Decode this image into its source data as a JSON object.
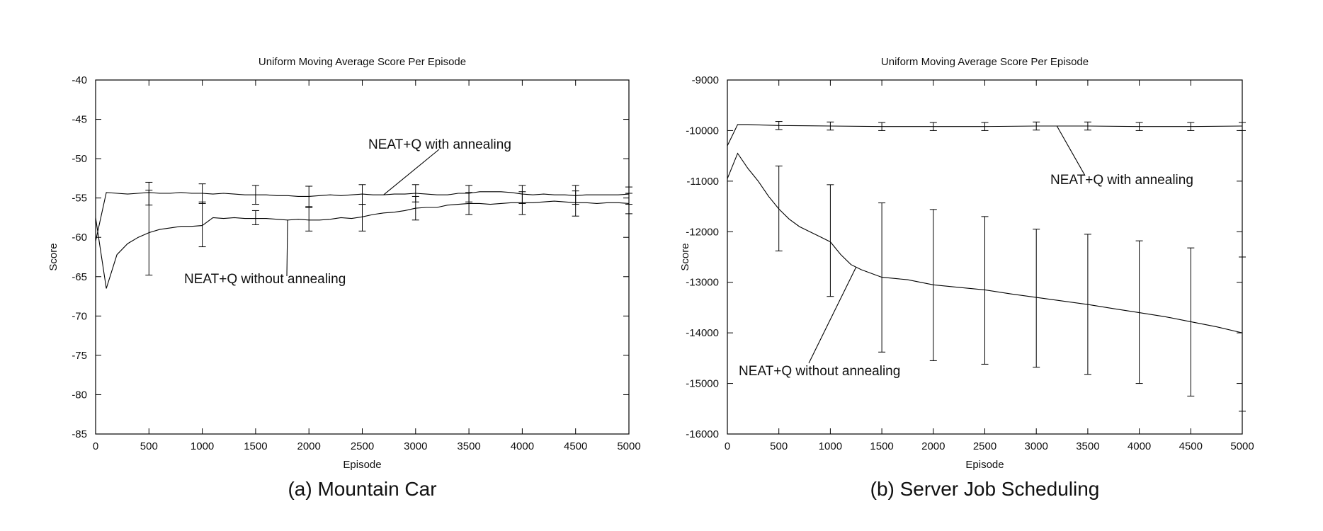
{
  "figure": {
    "captions": [
      "(a) Mountain Car",
      "(b) Server Job Scheduling"
    ]
  },
  "chart_data": [
    {
      "type": "line",
      "title": "Uniform Moving Average Score Per Episode",
      "caption": "(a) Mountain Car",
      "xlabel": "Episode",
      "ylabel": "Score",
      "xlim": [
        0,
        5000
      ],
      "ylim": [
        -85,
        -40
      ],
      "xticks": [
        0,
        500,
        1000,
        1500,
        2000,
        2500,
        3000,
        3500,
        4000,
        4500,
        5000
      ],
      "yticks": [
        -40,
        -45,
        -50,
        -55,
        -60,
        -65,
        -70,
        -75,
        -80,
        -85
      ],
      "grid": false,
      "annotations": [
        {
          "text": "NEAT+Q with annealing",
          "series": 0,
          "point_x": 2700
        },
        {
          "text": "NEAT+Q without annealing",
          "series": 1,
          "point_x": 1800
        }
      ],
      "series": [
        {
          "name": "NEAT+Q with annealing",
          "x": [
            0,
            100,
            200,
            300,
            400,
            500,
            600,
            700,
            800,
            900,
            1000,
            1100,
            1200,
            1300,
            1400,
            1500,
            1600,
            1700,
            1800,
            1900,
            2000,
            2100,
            2200,
            2300,
            2400,
            2500,
            2600,
            2700,
            2800,
            2900,
            3000,
            3100,
            3200,
            3300,
            3400,
            3500,
            3600,
            3700,
            3800,
            3900,
            4000,
            4100,
            4200,
            4300,
            4400,
            4500,
            4600,
            4700,
            4800,
            4900,
            5000
          ],
          "y": [
            -60.5,
            -54.3,
            -54.4,
            -54.5,
            -54.4,
            -54.3,
            -54.4,
            -54.4,
            -54.3,
            -54.4,
            -54.4,
            -54.5,
            -54.4,
            -54.5,
            -54.6,
            -54.6,
            -54.6,
            -54.7,
            -54.7,
            -54.8,
            -54.8,
            -54.7,
            -54.6,
            -54.7,
            -54.6,
            -54.5,
            -54.6,
            -54.6,
            -54.5,
            -54.5,
            -54.4,
            -54.5,
            -54.6,
            -54.6,
            -54.4,
            -54.4,
            -54.2,
            -54.2,
            -54.2,
            -54.3,
            -54.5,
            -54.6,
            -54.5,
            -54.6,
            -54.6,
            -54.7,
            -54.6,
            -54.6,
            -54.6,
            -54.6,
            -54.5
          ],
          "errorbars": [
            {
              "x": 500,
              "low": -55.9,
              "high": -53.0
            },
            {
              "x": 1000,
              "low": -55.7,
              "high": -53.2
            },
            {
              "x": 1500,
              "low": -55.8,
              "high": -53.4
            },
            {
              "x": 2000,
              "low": -56.1,
              "high": -53.5
            },
            {
              "x": 2500,
              "low": -55.8,
              "high": -53.3
            },
            {
              "x": 3000,
              "low": -55.5,
              "high": -53.3
            },
            {
              "x": 3500,
              "low": -55.5,
              "high": -53.4
            },
            {
              "x": 4000,
              "low": -55.7,
              "high": -53.4
            },
            {
              "x": 4500,
              "low": -55.8,
              "high": -53.4
            },
            {
              "x": 5000,
              "low": -55.8,
              "high": -53.6
            }
          ]
        },
        {
          "name": "NEAT+Q without annealing",
          "x": [
            0,
            100,
            200,
            300,
            400,
            500,
            600,
            700,
            800,
            900,
            1000,
            1100,
            1200,
            1300,
            1400,
            1500,
            1600,
            1700,
            1800,
            1900,
            2000,
            2100,
            2200,
            2300,
            2400,
            2500,
            2600,
            2700,
            2800,
            2900,
            3000,
            3100,
            3200,
            3300,
            3400,
            3500,
            3600,
            3700,
            3800,
            3900,
            4000,
            4100,
            4200,
            4300,
            4400,
            4500,
            4600,
            4700,
            4800,
            4900,
            5000
          ],
          "y": [
            -57.5,
            -66.5,
            -62.2,
            -60.8,
            -60.0,
            -59.4,
            -59.0,
            -58.8,
            -58.6,
            -58.6,
            -58.5,
            -57.5,
            -57.6,
            -57.5,
            -57.6,
            -57.6,
            -57.6,
            -57.7,
            -57.8,
            -57.7,
            -57.8,
            -57.8,
            -57.7,
            -57.5,
            -57.6,
            -57.4,
            -57.1,
            -56.9,
            -56.8,
            -56.6,
            -56.3,
            -56.2,
            -56.2,
            -55.9,
            -55.8,
            -55.7,
            -55.7,
            -55.8,
            -55.7,
            -55.6,
            -55.6,
            -55.6,
            -55.5,
            -55.4,
            -55.5,
            -55.6,
            -55.6,
            -55.7,
            -55.6,
            -55.6,
            -55.7
          ],
          "errorbars": [
            {
              "x": 500,
              "low": -64.8,
              "high": -54.0
            },
            {
              "x": 1000,
              "low": -61.2,
              "high": -55.5
            },
            {
              "x": 1500,
              "low": -58.4,
              "high": -56.6
            },
            {
              "x": 2000,
              "low": -59.2,
              "high": -56.2
            },
            {
              "x": 2500,
              "low": -59.2,
              "high": -55.8
            },
            {
              "x": 3000,
              "low": -57.8,
              "high": -54.8
            },
            {
              "x": 3500,
              "low": -57.1,
              "high": -54.3
            },
            {
              "x": 4000,
              "low": -57.1,
              "high": -54.2
            },
            {
              "x": 4500,
              "low": -57.3,
              "high": -54.1
            },
            {
              "x": 5000,
              "low": -57.0,
              "high": -54.4
            }
          ]
        }
      ]
    },
    {
      "type": "line",
      "title": "Uniform Moving Average Score Per Episode",
      "caption": "(b) Server Job Scheduling",
      "xlabel": "Episode",
      "ylabel": "Score",
      "xlim": [
        0,
        5000
      ],
      "ylim": [
        -16000,
        -9000
      ],
      "xticks": [
        0,
        500,
        1000,
        1500,
        2000,
        2500,
        3000,
        3500,
        4000,
        4500,
        5000
      ],
      "yticks": [
        -9000,
        -10000,
        -11000,
        -12000,
        -13000,
        -14000,
        -15000,
        -16000
      ],
      "grid": false,
      "annotations": [
        {
          "text": "NEAT+Q with annealing",
          "series": 0,
          "point_x": 3200
        },
        {
          "text": "NEAT+Q without annealing",
          "series": 1,
          "point_x": 1250
        }
      ],
      "series": [
        {
          "name": "NEAT+Q with annealing",
          "x": [
            0,
            100,
            200,
            500,
            1000,
            1500,
            2000,
            2500,
            3000,
            3500,
            4000,
            4500,
            5000
          ],
          "y": [
            -10300,
            -9880,
            -9880,
            -9900,
            -9910,
            -9920,
            -9920,
            -9920,
            -9910,
            -9910,
            -9920,
            -9920,
            -9910
          ],
          "errorbars": [
            {
              "x": 500,
              "low": -9980,
              "high": -9820
            },
            {
              "x": 1000,
              "low": -9990,
              "high": -9830
            },
            {
              "x": 1500,
              "low": -10000,
              "high": -9840
            },
            {
              "x": 2000,
              "low": -10000,
              "high": -9840
            },
            {
              "x": 2500,
              "low": -10000,
              "high": -9840
            },
            {
              "x": 3000,
              "low": -9990,
              "high": -9830
            },
            {
              "x": 3500,
              "low": -9990,
              "high": -9830
            },
            {
              "x": 4000,
              "low": -10000,
              "high": -9840
            },
            {
              "x": 4500,
              "low": -10000,
              "high": -9840
            },
            {
              "x": 5000,
              "low": -10000,
              "high": -9840
            }
          ]
        },
        {
          "name": "NEAT+Q without annealing",
          "x": [
            0,
            100,
            200,
            300,
            400,
            500,
            600,
            700,
            800,
            900,
            1000,
            1100,
            1200,
            1300,
            1500,
            1750,
            2000,
            2250,
            2500,
            2750,
            3000,
            3250,
            3500,
            3750,
            4000,
            4250,
            4500,
            4750,
            5000
          ],
          "y": [
            -10950,
            -10450,
            -10750,
            -11000,
            -11300,
            -11550,
            -11750,
            -11900,
            -12000,
            -12100,
            -12200,
            -12450,
            -12650,
            -12750,
            -12900,
            -12950,
            -13050,
            -13100,
            -13150,
            -13230,
            -13300,
            -13370,
            -13440,
            -13520,
            -13600,
            -13680,
            -13780,
            -13880,
            -14000
          ],
          "errorbars": [
            {
              "x": 500,
              "low": -12380,
              "high": -10700
            },
            {
              "x": 1000,
              "low": -13280,
              "high": -11070
            },
            {
              "x": 1500,
              "low": -14380,
              "high": -11430
            },
            {
              "x": 2000,
              "low": -14550,
              "high": -11560
            },
            {
              "x": 2500,
              "low": -14620,
              "high": -11700
            },
            {
              "x": 3000,
              "low": -14680,
              "high": -11950
            },
            {
              "x": 3500,
              "low": -14820,
              "high": -12050
            },
            {
              "x": 4000,
              "low": -15000,
              "high": -12180
            },
            {
              "x": 4500,
              "low": -15250,
              "high": -12320
            },
            {
              "x": 5000,
              "low": -15550,
              "high": -12500
            }
          ]
        }
      ]
    }
  ]
}
